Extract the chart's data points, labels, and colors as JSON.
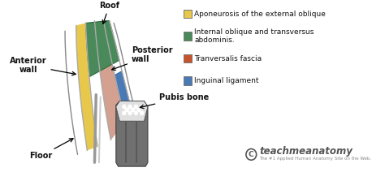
{
  "bg_color": "#ffffff",
  "col_yellow": "#e8c84a",
  "col_green": "#4a8a5a",
  "col_salmon": "#d4a090",
  "col_blue": "#4a7ab5",
  "col_gray_line": "#aaaaaa",
  "col_pubis": "#707070",
  "legend_items": [
    {
      "color": "#e8c84a",
      "label": "Aponeurosis of the external oblique"
    },
    {
      "color": "#4a8a5a",
      "label": "Internal oblique and transversus\nabdominis."
    },
    {
      "color": "#c8522a",
      "label": "Tranversalis fascia"
    },
    {
      "color": "#4a7ab5",
      "label": "Inguinal ligament"
    }
  ],
  "labels": {
    "roof": "Roof",
    "anterior_wall": "Anterior\nwall",
    "posterior_wall": "Posterior\nwall",
    "floor": "Floor",
    "pubis_bone": "Pubis bone"
  },
  "teachmeanatomy_text": "teachmeanatomy",
  "teachmeanatomy_sub": "The #1 Applied Human Anatomy Site on the Web.",
  "text_color": "#111111"
}
